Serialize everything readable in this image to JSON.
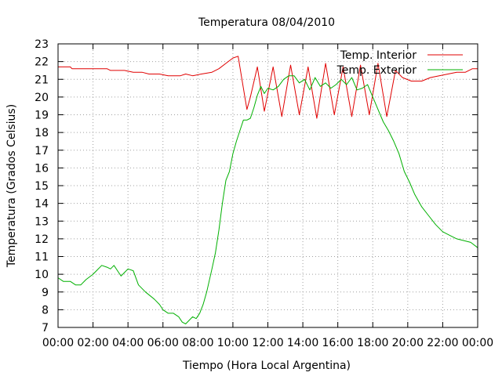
{
  "chart_data": {
    "type": "line",
    "title": "Temperatura 08/04/2010",
    "xlabel": "Tiempo (Hora Local Argentina)",
    "ylabel": "Temperatura (Grados Celsius)",
    "xlim": [
      0,
      24
    ],
    "ylim": [
      7,
      23
    ],
    "x_tick_labels": [
      "00:00",
      "02:00",
      "04:00",
      "06:00",
      "08:00",
      "10:00",
      "12:00",
      "14:00",
      "16:00",
      "18:00",
      "20:00",
      "22:00",
      "00:00"
    ],
    "y_ticks": [
      7,
      8,
      9,
      10,
      11,
      12,
      13,
      14,
      15,
      16,
      17,
      18,
      19,
      20,
      21,
      22,
      23
    ],
    "grid": true,
    "legend_position": "top-right",
    "series": [
      {
        "name": "Temp. Interior",
        "color": "#e00000",
        "x": [
          0,
          0.7,
          0.8,
          1.5,
          2.2,
          2.8,
          3.0,
          3.8,
          4.3,
          4.8,
          5.2,
          5.8,
          6.3,
          7.0,
          7.3,
          7.7,
          8.2,
          8.8,
          9.2,
          9.6,
          10.0,
          10.3,
          10.6,
          10.8,
          11.0,
          11.4,
          11.8,
          12.3,
          12.8,
          13.3,
          13.8,
          14.3,
          14.8,
          15.3,
          15.8,
          16.3,
          16.8,
          17.3,
          17.8,
          18.3,
          18.8,
          19.3,
          19.7,
          20.2,
          20.8,
          21.3,
          21.8,
          22.3,
          22.8,
          23.3,
          23.7,
          24.0
        ],
        "values": [
          21.7,
          21.7,
          21.6,
          21.6,
          21.6,
          21.6,
          21.5,
          21.5,
          21.4,
          21.4,
          21.3,
          21.3,
          21.2,
          21.2,
          21.3,
          21.2,
          21.3,
          21.4,
          21.6,
          21.9,
          22.2,
          22.3,
          20.5,
          19.3,
          20.0,
          21.7,
          19.2,
          21.7,
          18.9,
          21.8,
          19.0,
          21.7,
          18.8,
          21.9,
          19.0,
          21.7,
          18.9,
          21.8,
          19.0,
          21.9,
          18.9,
          21.5,
          21.1,
          20.9,
          20.9,
          21.1,
          21.2,
          21.3,
          21.4,
          21.4,
          21.6,
          21.6
        ]
      },
      {
        "name": "Temp. Exterior",
        "color": "#00b000",
        "x": [
          0,
          0.3,
          0.7,
          1.0,
          1.3,
          1.6,
          2.0,
          2.2,
          2.5,
          2.8,
          3.0,
          3.2,
          3.4,
          3.6,
          3.8,
          4.0,
          4.3,
          4.6,
          5.0,
          5.5,
          5.8,
          6.0,
          6.3,
          6.6,
          6.9,
          7.1,
          7.3,
          7.5,
          7.7,
          7.9,
          8.1,
          8.3,
          8.5,
          8.8,
          9.0,
          9.2,
          9.4,
          9.6,
          9.8,
          10.0,
          10.2,
          10.4,
          10.6,
          10.8,
          11.0,
          11.2,
          11.4,
          11.6,
          11.8,
          12.0,
          12.3,
          12.6,
          12.9,
          13.2,
          13.5,
          13.8,
          14.1,
          14.4,
          14.7,
          15.0,
          15.3,
          15.6,
          15.9,
          16.2,
          16.5,
          16.8,
          17.1,
          17.4,
          17.7,
          18.0,
          18.3,
          18.6,
          18.9,
          19.2,
          19.5,
          19.8,
          20.1,
          20.4,
          20.8,
          21.2,
          21.6,
          22.0,
          22.4,
          22.8,
          23.2,
          23.6,
          24.0
        ],
        "values": [
          9.8,
          9.6,
          9.6,
          9.4,
          9.4,
          9.7,
          10.0,
          10.2,
          10.5,
          10.4,
          10.3,
          10.5,
          10.2,
          9.9,
          10.1,
          10.3,
          10.2,
          9.4,
          9.0,
          8.6,
          8.3,
          8.0,
          7.8,
          7.8,
          7.6,
          7.3,
          7.2,
          7.4,
          7.6,
          7.5,
          7.8,
          8.3,
          9.0,
          10.3,
          11.2,
          12.5,
          14.0,
          15.3,
          15.8,
          16.8,
          17.5,
          18.1,
          18.7,
          18.7,
          18.8,
          19.4,
          20.1,
          20.6,
          20.2,
          20.5,
          20.4,
          20.6,
          21.0,
          21.2,
          21.2,
          20.8,
          21.0,
          20.4,
          21.1,
          20.6,
          20.8,
          20.5,
          20.7,
          21.0,
          20.7,
          21.1,
          20.4,
          20.5,
          20.7,
          20.0,
          19.3,
          18.6,
          18.1,
          17.5,
          16.8,
          15.8,
          15.2,
          14.5,
          13.8,
          13.3,
          12.8,
          12.4,
          12.2,
          12.0,
          11.9,
          11.8,
          11.5
        ]
      }
    ]
  }
}
